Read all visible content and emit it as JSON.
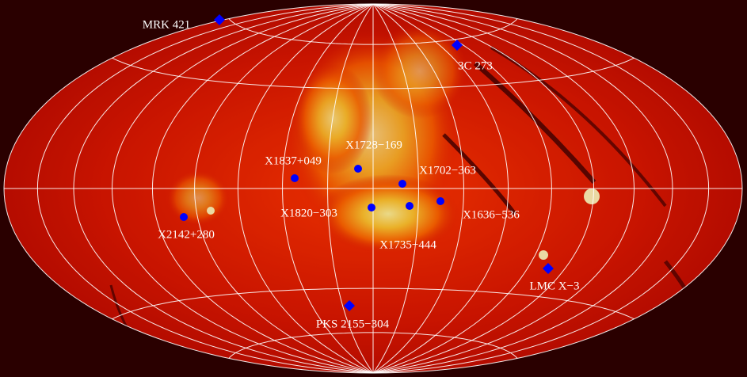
{
  "sources": [
    {
      "label": "MRK 421",
      "marker": "diamond"
    },
    {
      "label": "3C 273",
      "marker": "diamond"
    },
    {
      "label": "X1728−169",
      "marker": "circle"
    },
    {
      "label": "X1837+049",
      "marker": "circle"
    },
    {
      "label": "X1702−363",
      "marker": "circle"
    },
    {
      "label": "X1820−303",
      "marker": "circle"
    },
    {
      "label": "X1636−536",
      "marker": "circle"
    },
    {
      "label": "X1735−444",
      "marker": "circle"
    },
    {
      "label": "X2142+280",
      "marker": "circle"
    },
    {
      "label": "LMC X−3",
      "marker": "diamond"
    },
    {
      "label": "PKS 2155−304",
      "marker": "diamond"
    }
  ]
}
